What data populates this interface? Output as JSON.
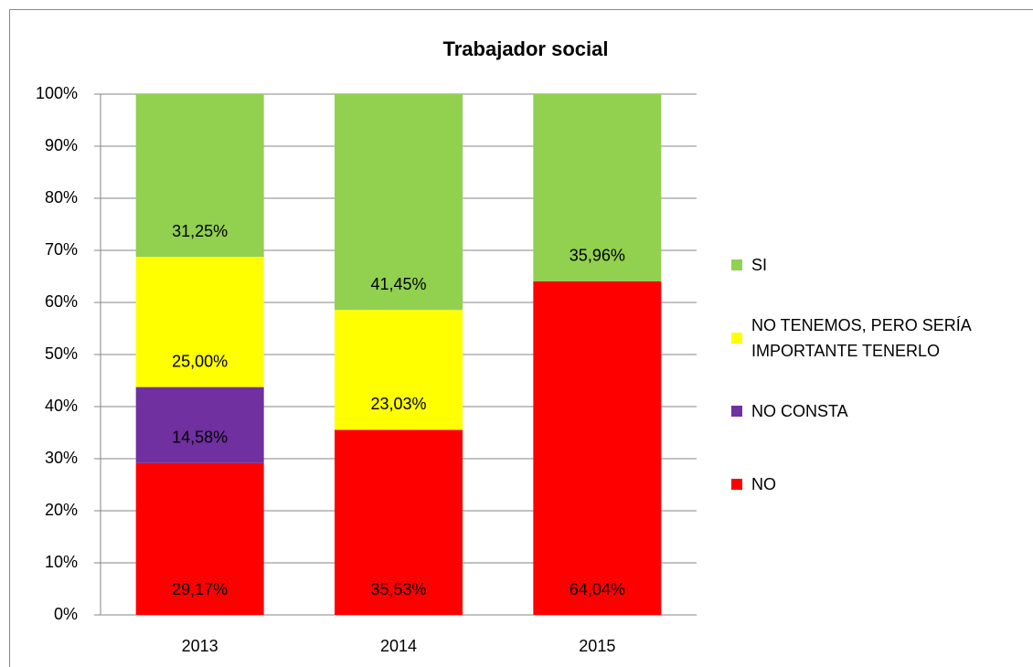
{
  "chart_data": {
    "type": "stacked_bar",
    "title": "Trabajador social",
    "categories": [
      "2013",
      "2014",
      "2015"
    ],
    "series": [
      {
        "name": "NO",
        "color": "#ff0000",
        "values": [
          29.17,
          35.53,
          64.04
        ],
        "value_labels": [
          "29,17%",
          "35,53%",
          "64,04%"
        ]
      },
      {
        "name": "NO CONSTA",
        "color": "#7030a0",
        "values": [
          14.58,
          null,
          null
        ],
        "value_labels": [
          "14,58%",
          null,
          null
        ]
      },
      {
        "name": "NO TENEMOS, PERO SERÍA IMPORTANTE TENERLO",
        "color": "#ffff00",
        "values": [
          25.0,
          23.03,
          null
        ],
        "value_labels": [
          "25,00%",
          "23,03%",
          null
        ]
      },
      {
        "name": "SI",
        "color": "#92d050",
        "values": [
          31.25,
          41.45,
          35.96
        ],
        "value_labels": [
          "31,25%",
          "41,45%",
          "35,96%"
        ]
      }
    ],
    "ylim": [
      0,
      100
    ],
    "yticks": [
      {
        "value": 0,
        "label": "0%"
      },
      {
        "value": 10,
        "label": "10%"
      },
      {
        "value": 20,
        "label": "20%"
      },
      {
        "value": 30,
        "label": "30%"
      },
      {
        "value": 40,
        "label": "40%"
      },
      {
        "value": 50,
        "label": "50%"
      },
      {
        "value": 60,
        "label": "60%"
      },
      {
        "value": 70,
        "label": "70%"
      },
      {
        "value": 80,
        "label": "80%"
      },
      {
        "value": 90,
        "label": "90%"
      },
      {
        "value": 100,
        "label": "100%"
      }
    ],
    "grid": true,
    "legend": "right"
  }
}
